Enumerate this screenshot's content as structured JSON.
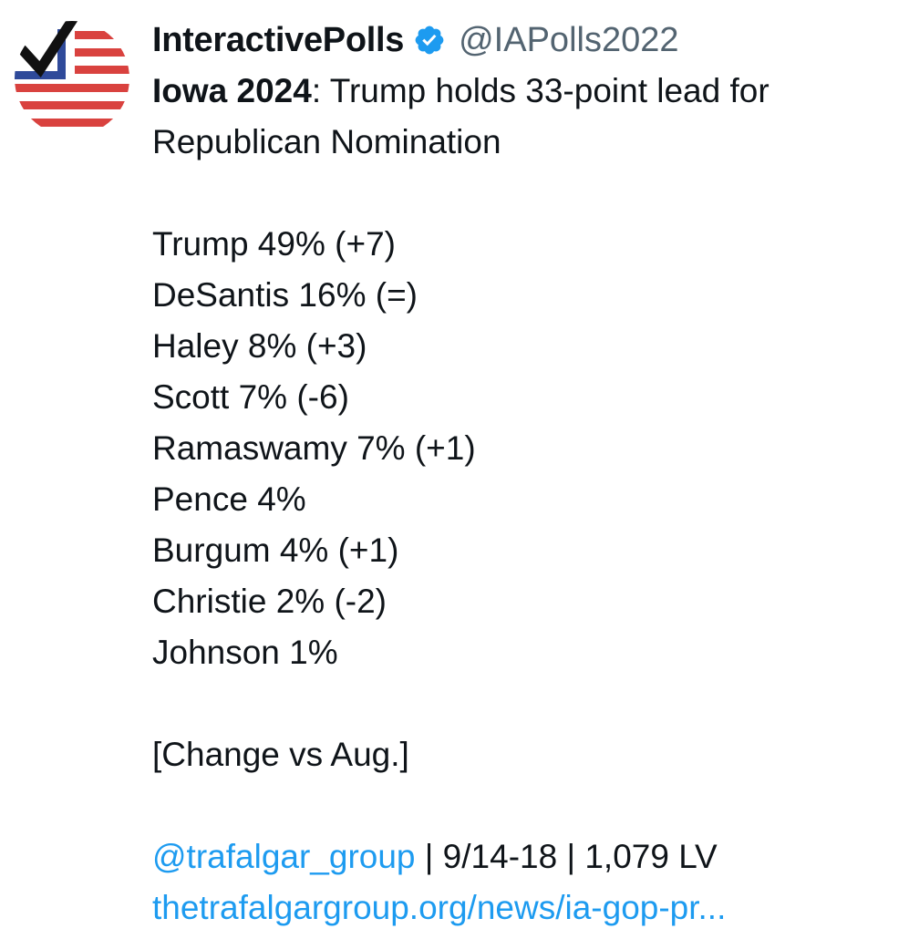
{
  "tweet": {
    "display_name": "InteractivePolls",
    "handle": "@IAPolls2022",
    "verified_icon": "verified-badge-icon",
    "title_bold": "Iowa 2024",
    "title_rest": ": Trump holds 33-point lead for",
    "title_line2": "Republican Nomination",
    "results": [
      {
        "text": "Trump 49% (+7)"
      },
      {
        "text": "DeSantis 16% (=)"
      },
      {
        "text": "Haley 8% (+3)"
      },
      {
        "text": "Scott 7% (-6)"
      },
      {
        "text": "Ramaswamy 7% (+1)"
      },
      {
        "text": "Pence 4%"
      },
      {
        "text": "Burgum 4% (+1)"
      },
      {
        "text": "Christie 2% (-2)"
      },
      {
        "text": "Johnson 1%"
      }
    ],
    "note": "[Change vs Aug.]",
    "source_mention": "@trafalgar_group",
    "source_details": " | 9/14-18 | 1,079 LV",
    "link_text": "thetrafalgargroup.org/news/ia-gop-pr..."
  },
  "colors": {
    "text": "#0f1419",
    "handle": "#536471",
    "link": "#1d9bf0",
    "verified": "#1d9bf0",
    "flag_red": "#d9423f",
    "flag_blue": "#2f4a9a"
  }
}
